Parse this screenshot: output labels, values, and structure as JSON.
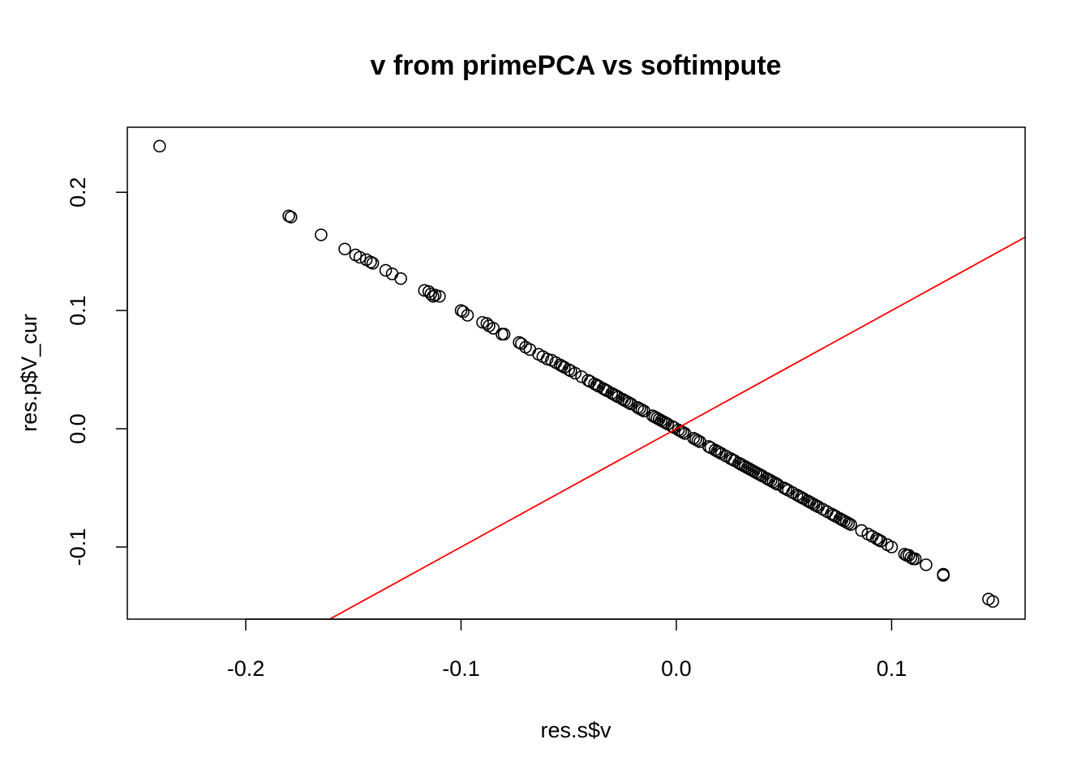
{
  "chart_data": {
    "type": "scatter",
    "title": "v from primePCA vs softimpute",
    "xlabel": "res.s$v",
    "ylabel": "res.p$V_cur",
    "xlim": [
      -0.255,
      0.162
    ],
    "ylim": [
      -0.161,
      0.255
    ],
    "xticks": [
      -0.2,
      -0.1,
      0.0,
      0.1
    ],
    "xtick_labels": [
      "-0.2",
      "-0.1",
      "0.0",
      "0.1"
    ],
    "yticks": [
      -0.1,
      0.0,
      0.1,
      0.2
    ],
    "ytick_labels": [
      "-0.1",
      "0.0",
      "0.1",
      "0.2"
    ],
    "grid": false,
    "marker": "open-circle",
    "colors": {
      "points": "#000000",
      "reference_line": "#ff0000"
    },
    "reference_line": {
      "intercept": 0,
      "slope": 1,
      "color": "#ff0000"
    },
    "points": [
      [
        -0.24,
        0.239
      ],
      [
        -0.179,
        0.179
      ],
      [
        -0.18,
        0.18
      ],
      [
        -0.165,
        0.164
      ],
      [
        -0.154,
        0.152
      ],
      [
        -0.149,
        0.147
      ],
      [
        -0.147,
        0.145
      ],
      [
        -0.144,
        0.143
      ],
      [
        -0.142,
        0.141
      ],
      [
        -0.141,
        0.14
      ],
      [
        -0.135,
        0.134
      ],
      [
        -0.132,
        0.131
      ],
      [
        -0.128,
        0.127
      ],
      [
        -0.117,
        0.117
      ],
      [
        -0.115,
        0.116
      ],
      [
        -0.114,
        0.114
      ],
      [
        -0.113,
        0.112
      ],
      [
        -0.112,
        0.113
      ],
      [
        -0.11,
        0.112
      ],
      [
        -0.1,
        0.1
      ],
      [
        -0.099,
        0.099
      ],
      [
        -0.097,
        0.096
      ],
      [
        -0.09,
        0.09
      ],
      [
        -0.088,
        0.089
      ],
      [
        -0.087,
        0.087
      ],
      [
        -0.085,
        0.085
      ],
      [
        -0.081,
        0.08
      ],
      [
        -0.08,
        0.08
      ],
      [
        -0.073,
        0.073
      ],
      [
        -0.072,
        0.072
      ],
      [
        -0.07,
        0.069
      ],
      [
        -0.068,
        0.067
      ],
      [
        -0.064,
        0.063
      ],
      [
        -0.062,
        0.061
      ],
      [
        -0.06,
        0.059
      ],
      [
        -0.058,
        0.058
      ],
      [
        -0.056,
        0.056
      ],
      [
        -0.054,
        0.054
      ],
      [
        -0.053,
        0.053
      ],
      [
        -0.052,
        0.052
      ],
      [
        -0.05,
        0.05
      ],
      [
        -0.049,
        0.049
      ],
      [
        -0.047,
        0.047
      ],
      [
        -0.044,
        0.044
      ],
      [
        -0.041,
        0.041
      ],
      [
        -0.04,
        0.04
      ],
      [
        -0.038,
        0.038
      ],
      [
        -0.037,
        0.037
      ],
      [
        -0.036,
        0.036
      ],
      [
        -0.034,
        0.034
      ],
      [
        -0.033,
        0.033
      ],
      [
        -0.032,
        0.032
      ],
      [
        -0.03,
        0.03
      ],
      [
        -0.029,
        0.029
      ],
      [
        -0.028,
        0.028
      ],
      [
        -0.027,
        0.027
      ],
      [
        -0.025,
        0.025
      ],
      [
        -0.024,
        0.024
      ],
      [
        -0.023,
        0.023
      ],
      [
        -0.022,
        0.022
      ],
      [
        -0.021,
        0.021
      ],
      [
        -0.018,
        0.018
      ],
      [
        -0.017,
        0.017
      ],
      [
        -0.016,
        0.016
      ],
      [
        -0.015,
        0.015
      ],
      [
        -0.011,
        0.011
      ],
      [
        -0.01,
        0.01
      ],
      [
        -0.009,
        0.009
      ],
      [
        -0.008,
        0.008
      ],
      [
        -0.007,
        0.007
      ],
      [
        -0.006,
        0.006
      ],
      [
        -0.005,
        0.005
      ],
      [
        -0.004,
        0.004
      ],
      [
        -0.002,
        0.002
      ],
      [
        -0.001,
        0.001
      ],
      [
        0.001,
        -0.001
      ],
      [
        0.002,
        -0.002
      ],
      [
        0.003,
        -0.003
      ],
      [
        0.004,
        -0.004
      ],
      [
        0.008,
        -0.008
      ],
      [
        0.009,
        -0.009
      ],
      [
        0.01,
        -0.01
      ],
      [
        0.011,
        -0.011
      ],
      [
        0.015,
        -0.015
      ],
      [
        0.016,
        -0.016
      ],
      [
        0.018,
        -0.018
      ],
      [
        0.019,
        -0.019
      ],
      [
        0.02,
        -0.02
      ],
      [
        0.021,
        -0.021
      ],
      [
        0.023,
        -0.023
      ],
      [
        0.025,
        -0.025
      ],
      [
        0.026,
        -0.026
      ],
      [
        0.027,
        -0.027
      ],
      [
        0.029,
        -0.029
      ],
      [
        0.03,
        -0.03
      ],
      [
        0.031,
        -0.031
      ],
      [
        0.032,
        -0.032
      ],
      [
        0.033,
        -0.033
      ],
      [
        0.034,
        -0.034
      ],
      [
        0.035,
        -0.035
      ],
      [
        0.036,
        -0.036
      ],
      [
        0.037,
        -0.037
      ],
      [
        0.038,
        -0.038
      ],
      [
        0.039,
        -0.039
      ],
      [
        0.04,
        -0.04
      ],
      [
        0.042,
        -0.042
      ],
      [
        0.043,
        -0.043
      ],
      [
        0.044,
        -0.044
      ],
      [
        0.045,
        -0.045
      ],
      [
        0.046,
        -0.046
      ],
      [
        0.047,
        -0.047
      ],
      [
        0.05,
        -0.05
      ],
      [
        0.051,
        -0.051
      ],
      [
        0.052,
        -0.052
      ],
      [
        0.054,
        -0.054
      ],
      [
        0.056,
        -0.056
      ],
      [
        0.057,
        -0.057
      ],
      [
        0.058,
        -0.058
      ],
      [
        0.059,
        -0.059
      ],
      [
        0.061,
        -0.061
      ],
      [
        0.062,
        -0.062
      ],
      [
        0.063,
        -0.063
      ],
      [
        0.064,
        -0.064
      ],
      [
        0.065,
        -0.065
      ],
      [
        0.066,
        -0.066
      ],
      [
        0.068,
        -0.068
      ],
      [
        0.07,
        -0.07
      ],
      [
        0.072,
        -0.072
      ],
      [
        0.073,
        -0.073
      ],
      [
        0.074,
        -0.074
      ],
      [
        0.076,
        -0.076
      ],
      [
        0.077,
        -0.077
      ],
      [
        0.078,
        -0.078
      ],
      [
        0.079,
        -0.079
      ],
      [
        0.08,
        -0.08
      ],
      [
        0.081,
        -0.081
      ],
      [
        0.086,
        -0.086
      ],
      [
        0.089,
        -0.089
      ],
      [
        0.091,
        -0.091
      ],
      [
        0.093,
        -0.093
      ],
      [
        0.094,
        -0.094
      ],
      [
        0.095,
        -0.095
      ],
      [
        0.098,
        -0.098
      ],
      [
        0.1,
        -0.1
      ],
      [
        0.106,
        -0.106
      ],
      [
        0.107,
        -0.107
      ],
      [
        0.108,
        -0.107
      ],
      [
        0.109,
        -0.109
      ],
      [
        0.11,
        -0.11
      ],
      [
        0.111,
        -0.11
      ],
      [
        0.116,
        -0.115
      ],
      [
        0.124,
        -0.124
      ],
      [
        0.124,
        -0.123
      ],
      [
        0.145,
        -0.144
      ],
      [
        0.147,
        -0.146
      ]
    ]
  }
}
